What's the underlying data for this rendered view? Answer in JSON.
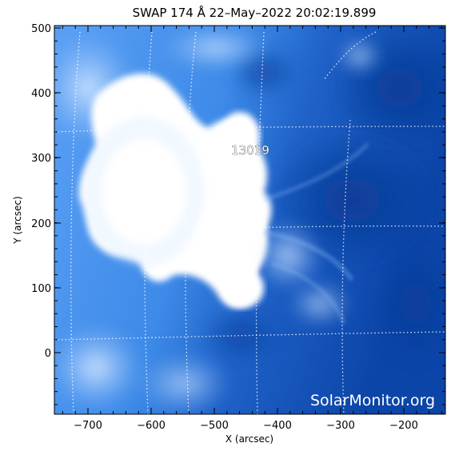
{
  "title": "SWAP 174 Å 22–May–2022 20:02:19.899",
  "xlabel": "X (arcsec)",
  "ylabel": "Y (arcsec)",
  "x_ticks": [
    "−700",
    "−600",
    "−500",
    "−400",
    "−300",
    "−200"
  ],
  "y_ticks": [
    "500",
    "400",
    "300",
    "200",
    "100",
    "0"
  ],
  "active_region": "13019",
  "watermark": "SolarMonitor.org",
  "colors": {
    "background": "#ffffff",
    "image_dark": "#0b3f9e",
    "image_mid": "#2b7be0",
    "image_light": "#9cc8ff",
    "flare_white": "#ffffff"
  }
}
